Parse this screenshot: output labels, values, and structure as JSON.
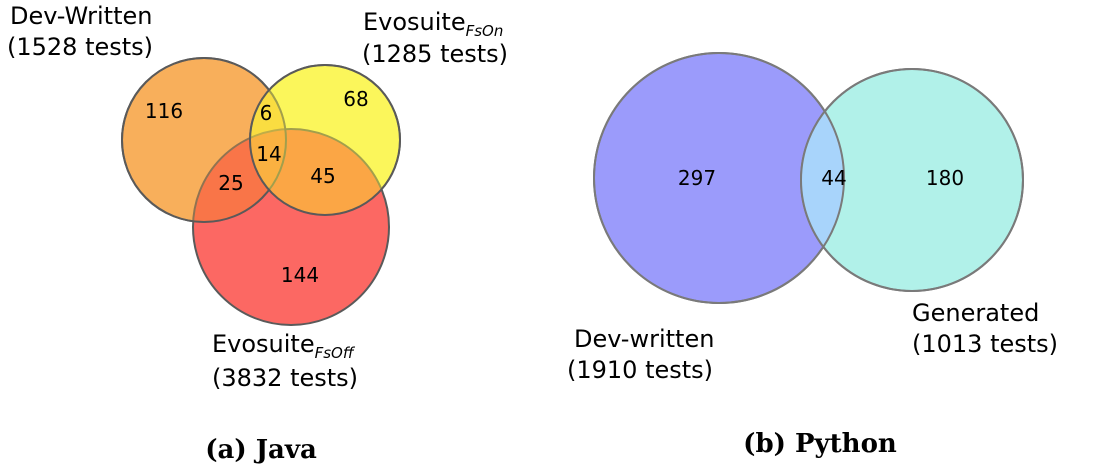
{
  "java": {
    "caption": "(a) Java",
    "sets": {
      "dev": {
        "name": "Dev-Written",
        "count": "(1528 tests)",
        "color": "#f7a243"
      },
      "fson": {
        "name": "Evosuite",
        "subscript": "FsOn",
        "count": "(1285 tests)",
        "color": "#fbf33c"
      },
      "fsoff": {
        "name": "Evosuite",
        "subscript": "FsOff",
        "count": "(3832 tests)",
        "color": "#fb5753"
      }
    },
    "regions": {
      "dev_only": "116",
      "fson_only": "68",
      "fsoff_only": "144",
      "dev_fson": "6",
      "dev_fsoff": "25",
      "fson_fsoff": "45",
      "all_three": "14"
    }
  },
  "python": {
    "caption": "(b) Python",
    "sets": {
      "dev": {
        "name": "Dev-written",
        "count": "(1910 tests)",
        "color": "#9b9bfb"
      },
      "generated": {
        "name": "Generated",
        "count": "(1013 tests)",
        "color": "#b1f1e9"
      }
    },
    "regions": {
      "dev_only": "297",
      "both": "44",
      "generated_only": "180"
    }
  }
}
